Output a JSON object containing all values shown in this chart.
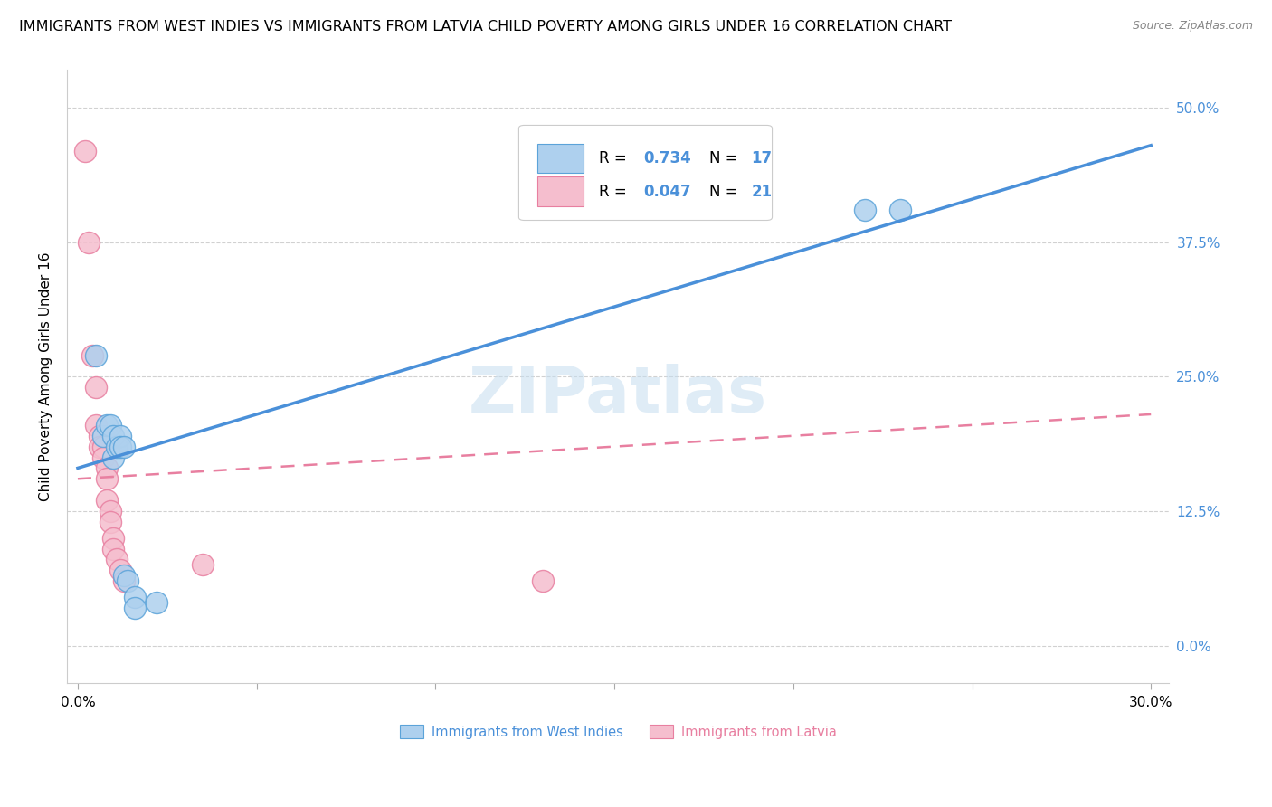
{
  "title": "IMMIGRANTS FROM WEST INDIES VS IMMIGRANTS FROM LATVIA CHILD POVERTY AMONG GIRLS UNDER 16 CORRELATION CHART",
  "source": "Source: ZipAtlas.com",
  "ylabel": "Child Poverty Among Girls Under 16",
  "ytick_labels": [
    "0.0%",
    "12.5%",
    "25.0%",
    "37.5%",
    "50.0%"
  ],
  "ytick_values": [
    0.0,
    0.125,
    0.25,
    0.375,
    0.5
  ],
  "xtick_values": [
    0.0,
    0.05,
    0.1,
    0.15,
    0.2,
    0.25,
    0.3
  ],
  "xtick_labels": [
    "0.0%",
    "",
    "",
    "",
    "",
    "",
    "30.0%"
  ],
  "xlim": [
    -0.003,
    0.305
  ],
  "ylim": [
    -0.035,
    0.535
  ],
  "watermark": "ZIPatlas",
  "blue_color": "#aed0ee",
  "pink_color": "#f5bece",
  "blue_edge_color": "#5ba3d9",
  "pink_edge_color": "#e87fa0",
  "blue_line_color": "#4a90d9",
  "pink_line_color": "#e87fa0",
  "blue_scatter": [
    [
      0.005,
      0.27
    ],
    [
      0.007,
      0.195
    ],
    [
      0.008,
      0.205
    ],
    [
      0.009,
      0.205
    ],
    [
      0.01,
      0.195
    ],
    [
      0.01,
      0.175
    ],
    [
      0.011,
      0.185
    ],
    [
      0.012,
      0.195
    ],
    [
      0.012,
      0.185
    ],
    [
      0.013,
      0.185
    ],
    [
      0.013,
      0.065
    ],
    [
      0.014,
      0.06
    ],
    [
      0.016,
      0.045
    ],
    [
      0.016,
      0.035
    ],
    [
      0.022,
      0.04
    ],
    [
      0.22,
      0.405
    ],
    [
      0.23,
      0.405
    ]
  ],
  "pink_scatter": [
    [
      0.002,
      0.46
    ],
    [
      0.003,
      0.375
    ],
    [
      0.004,
      0.27
    ],
    [
      0.005,
      0.24
    ],
    [
      0.005,
      0.205
    ],
    [
      0.006,
      0.195
    ],
    [
      0.006,
      0.185
    ],
    [
      0.007,
      0.185
    ],
    [
      0.007,
      0.175
    ],
    [
      0.008,
      0.165
    ],
    [
      0.008,
      0.155
    ],
    [
      0.008,
      0.135
    ],
    [
      0.009,
      0.125
    ],
    [
      0.009,
      0.115
    ],
    [
      0.01,
      0.1
    ],
    [
      0.01,
      0.09
    ],
    [
      0.011,
      0.08
    ],
    [
      0.012,
      0.07
    ],
    [
      0.013,
      0.06
    ],
    [
      0.035,
      0.075
    ],
    [
      0.13,
      0.06
    ]
  ],
  "blue_line_x": [
    0.0,
    0.3
  ],
  "blue_line_y": [
    0.165,
    0.465
  ],
  "pink_line_x": [
    0.0,
    0.3
  ],
  "pink_line_y": [
    0.155,
    0.215
  ],
  "background_color": "#ffffff",
  "grid_color": "#cccccc",
  "title_fontsize": 11.5,
  "axis_label_fontsize": 11,
  "tick_fontsize": 11
}
